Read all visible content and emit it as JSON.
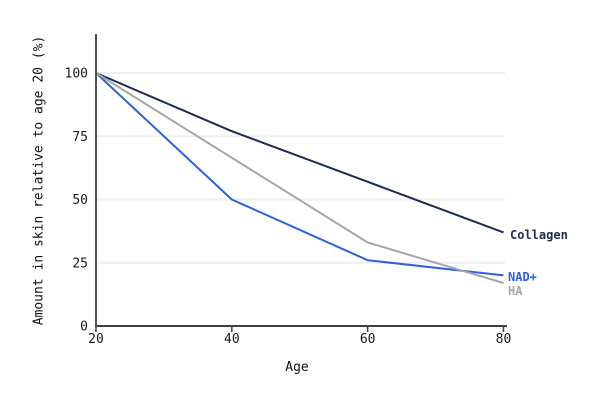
{
  "chart_data": {
    "type": "line",
    "title": "",
    "xlabel": "Age",
    "ylabel": "Amount in skin relative to age 20 (%)",
    "xlim": [
      20,
      80
    ],
    "ylim": [
      0,
      100
    ],
    "xticks": [
      20,
      40,
      60,
      80
    ],
    "yticks": [
      0,
      25,
      50,
      75,
      100
    ],
    "grid": "horizontal gridlines at yticks, no vertical gridlines",
    "legend_position": "labels at right ends of lines",
    "axis_color": "#3f3f3f",
    "grid_color": "#efefef",
    "tick_label_color": "#1a1a1a",
    "series": [
      {
        "name": "Collagen",
        "color": "#1c2b50",
        "points": [
          [
            20,
            100
          ],
          [
            40,
            77
          ],
          [
            60,
            57
          ],
          [
            80,
            37
          ]
        ]
      },
      {
        "name": "NAD+",
        "color": "#2b63de",
        "points": [
          [
            20,
            100
          ],
          [
            40,
            50
          ],
          [
            60,
            26
          ],
          [
            80,
            20
          ]
        ]
      },
      {
        "name": "HA",
        "color": "#a7a7a7",
        "points": [
          [
            20,
            100
          ],
          [
            60,
            33
          ],
          [
            80,
            17
          ]
        ]
      }
    ]
  }
}
